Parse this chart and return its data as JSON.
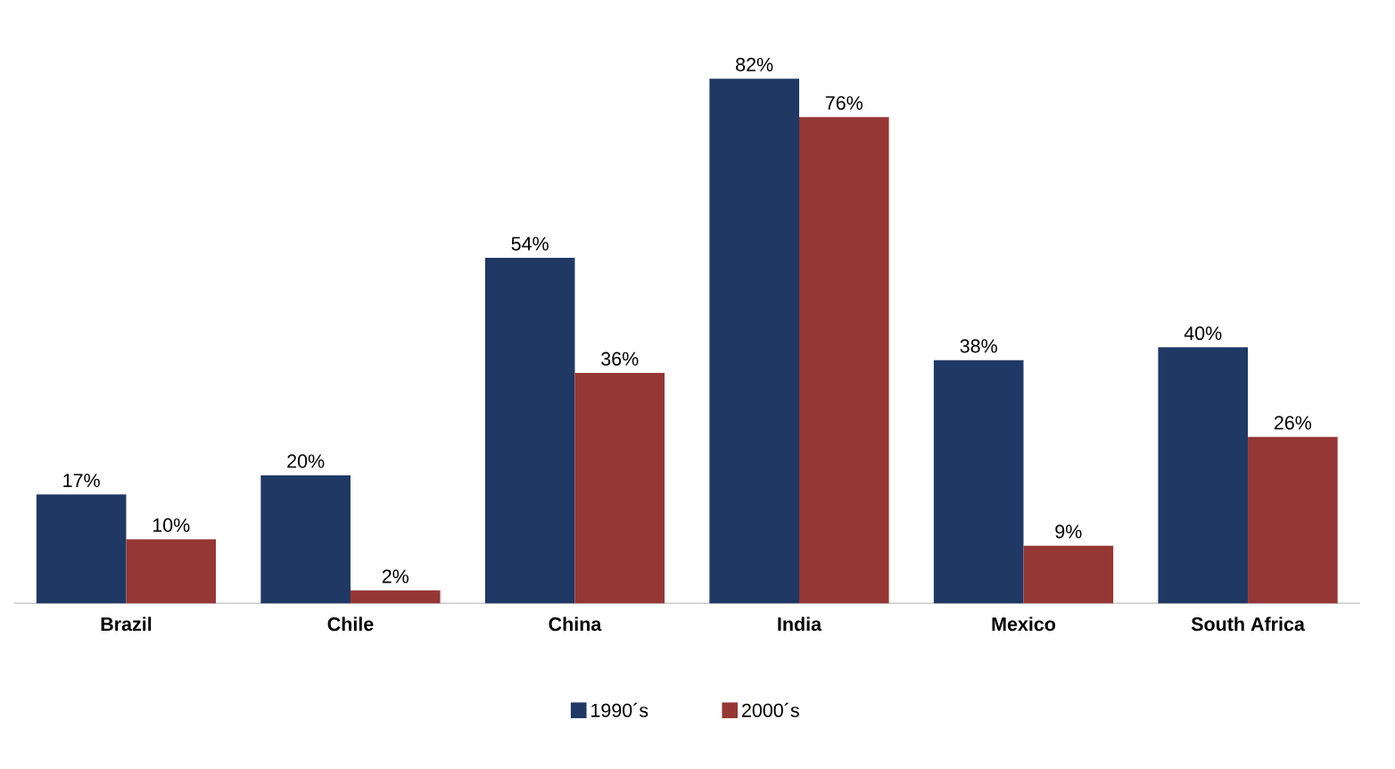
{
  "chart_data": {
    "type": "bar",
    "categories": [
      "Brazil",
      "Chile",
      "China",
      "India",
      "Mexico",
      "South Africa"
    ],
    "series": [
      {
        "name": "1990´s",
        "color": "#1f3864",
        "values": [
          17,
          20,
          54,
          82,
          38,
          40
        ],
        "value_labels": [
          "17%",
          "20%",
          "54%",
          "82%",
          "38%",
          "40%"
        ]
      },
      {
        "name": "2000´s",
        "color": "#953735",
        "values": [
          10,
          2,
          36,
          76,
          9,
          26
        ],
        "value_labels": [
          "10%",
          "2%",
          "36%",
          "76%",
          "9%",
          "26%"
        ]
      }
    ],
    "legend": "bottom",
    "tick_labels": "x"
  }
}
